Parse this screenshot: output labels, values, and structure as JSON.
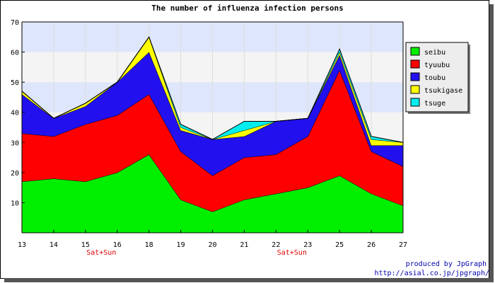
{
  "chart_data": {
    "type": "area",
    "stacked": true,
    "title": "The number of influenza infection persons",
    "x": [
      "13",
      "14",
      "15",
      "16",
      "18",
      "19",
      "20",
      "21",
      "22",
      "23",
      "25",
      "26",
      "27"
    ],
    "weekend_label": "Sat+Sun",
    "weekend_after": [
      "15",
      "22"
    ],
    "ylim": [
      0,
      70
    ],
    "yticks": [
      10,
      20,
      30,
      40,
      50,
      60,
      70
    ],
    "grid": true,
    "legend_position": "right",
    "series": [
      {
        "name": "seibu",
        "color": "#00ee00",
        "values": [
          17,
          18,
          17,
          20,
          26,
          11,
          7,
          11,
          13,
          15,
          19,
          13,
          9
        ]
      },
      {
        "name": "tyuubu",
        "color": "#ff0000",
        "values": [
          16,
          14,
          19,
          19,
          20,
          16,
          12,
          14,
          13,
          17,
          35,
          14,
          13
        ]
      },
      {
        "name": "toubu",
        "color": "#2211ee",
        "values": [
          13,
          6,
          6,
          11,
          14,
          7,
          12,
          7,
          11,
          6,
          5,
          2,
          7
        ]
      },
      {
        "name": "tsukigase",
        "color": "#ffff00",
        "values": [
          1,
          0,
          1,
          0,
          5,
          1,
          0,
          2,
          0,
          0,
          1,
          2,
          1
        ]
      },
      {
        "name": "tsuge",
        "color": "#00eeee",
        "values": [
          0,
          0,
          0,
          0,
          0,
          1,
          0,
          3,
          0,
          0,
          1,
          1,
          0
        ]
      }
    ]
  },
  "credit": {
    "line1": "produced by JpGraph",
    "line2": "http://asial.co.jp/jpgraph/"
  }
}
